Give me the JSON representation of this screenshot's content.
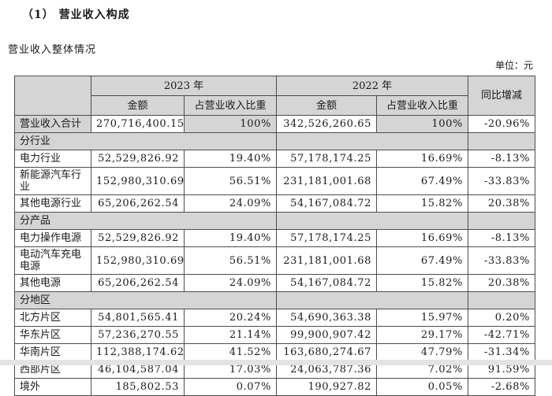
{
  "page": {
    "title": "（1） 营业收入构成",
    "subtitle": "营业收入整体情况",
    "unit_label": "单位：元"
  },
  "colors": {
    "header_fill": "#d5d5d5",
    "border": "#4d4d4d",
    "background": "#ffffff"
  },
  "table": {
    "header": {
      "year_2023": "2023 年",
      "year_2022": "2022 年",
      "yoy": "同比增减",
      "amount_2023": "金额",
      "share_2023": "占营业收入比重",
      "amount_2022": "金额",
      "share_2022": "占营业收入比重"
    },
    "rows": [
      {
        "kind": "total",
        "label": "营业收入合计",
        "amount_2023": "270,716,400.15",
        "share_2023": "100%",
        "amount_2022": "342,526,260.65",
        "share_2022": "100%",
        "yoy": "-20.96%"
      },
      {
        "kind": "section",
        "label": "分行业"
      },
      {
        "kind": "data",
        "label": "电力行业",
        "amount_2023": "52,529,826.92",
        "share_2023": "19.40%",
        "amount_2022": "57,178,174.25",
        "share_2022": "16.69%",
        "yoy": "-8.13%"
      },
      {
        "kind": "data",
        "label": "新能源汽车行业",
        "amount_2023": "152,980,310.69",
        "share_2023": "56.51%",
        "amount_2022": "231,181,001.68",
        "share_2022": "67.49%",
        "yoy": "-33.83%"
      },
      {
        "kind": "data",
        "label": "其他电源行业",
        "amount_2023": "65,206,262.54",
        "share_2023": "24.09%",
        "amount_2022": "54,167,084.72",
        "share_2022": "15.82%",
        "yoy": "20.38%"
      },
      {
        "kind": "section",
        "label": "分产品"
      },
      {
        "kind": "data",
        "label": "电力操作电源",
        "amount_2023": "52,529,826.92",
        "share_2023": "19.40%",
        "amount_2022": "57,178,174.25",
        "share_2022": "16.69%",
        "yoy": "-8.13%"
      },
      {
        "kind": "data",
        "label": "电动汽车充电电源",
        "amount_2023": "152,980,310.69",
        "share_2023": "56.51%",
        "amount_2022": "231,181,001.68",
        "share_2022": "67.49%",
        "yoy": "-33.83%"
      },
      {
        "kind": "data",
        "label": "其他电源",
        "amount_2023": "65,206,262.54",
        "share_2023": "24.09%",
        "amount_2022": "54,167,084.72",
        "share_2022": "15.82%",
        "yoy": "20.38%"
      },
      {
        "kind": "section",
        "label": "分地区"
      },
      {
        "kind": "data",
        "label": "北方片区",
        "amount_2023": "54,801,565.41",
        "share_2023": "20.24%",
        "amount_2022": "54,690,363.38",
        "share_2022": "15.97%",
        "yoy": "0.20%"
      },
      {
        "kind": "data",
        "label": "华东片区",
        "amount_2023": "57,236,270.55",
        "share_2023": "21.14%",
        "amount_2022": "99,900,907.42",
        "share_2022": "29.17%",
        "yoy": "-42.71%"
      },
      {
        "kind": "data",
        "label": "华南片区",
        "amount_2023": "112,388,174.62",
        "share_2023": "41.52%",
        "amount_2022": "163,680,274.67",
        "share_2022": "47.79%",
        "yoy": "-31.34%"
      },
      {
        "kind": "data",
        "label": "西部片区",
        "amount_2023": "46,104,587.04",
        "share_2023": "17.03%",
        "amount_2022": "24,063,787.36",
        "share_2022": "7.02%",
        "yoy": "91.59%"
      },
      {
        "kind": "data",
        "label": "境外",
        "amount_2023": "185,802.53",
        "share_2023": "0.07%",
        "amount_2022": "190,927.82",
        "share_2022": "0.05%",
        "yoy": "-2.68%"
      }
    ]
  }
}
